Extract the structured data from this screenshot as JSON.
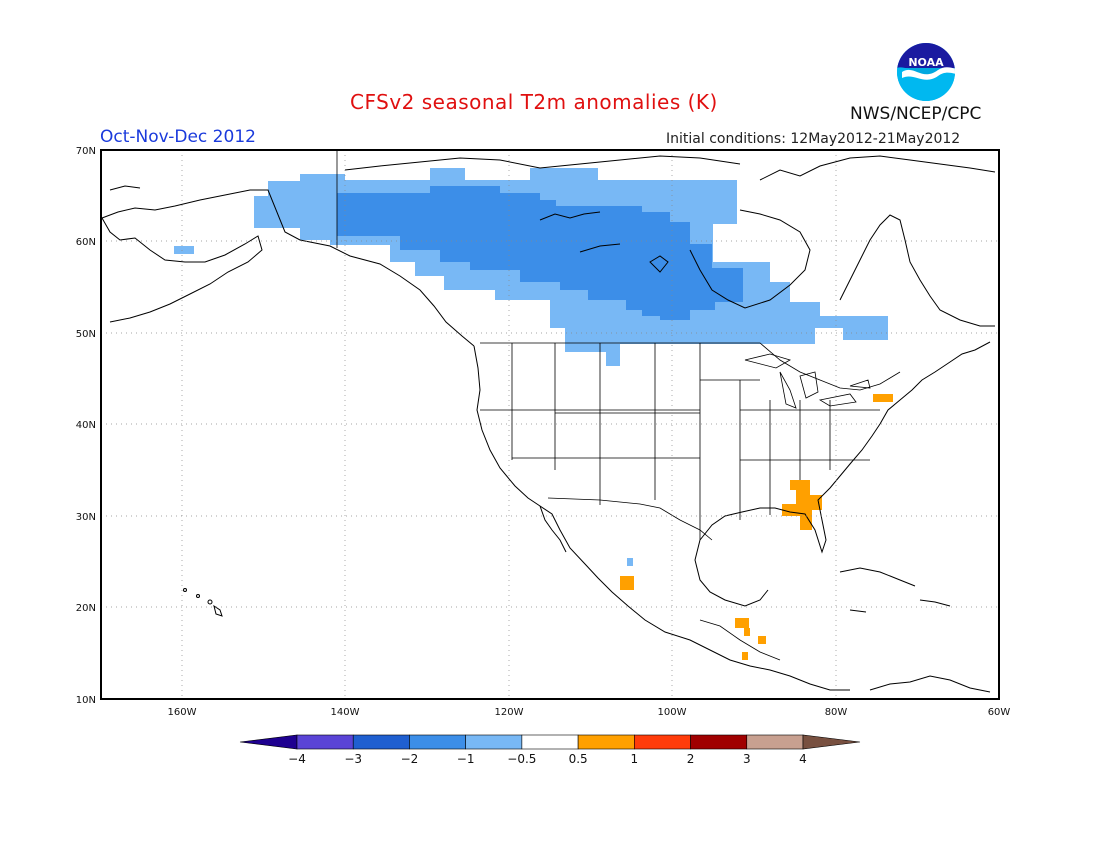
{
  "title": "CFSv2 seasonal T2m anomalies (K)",
  "period": "Oct-Nov-Dec 2012",
  "initial_conditions": "Initial conditions: 12May2012-21May2012",
  "agency": "NWS/NCEP/CPC",
  "logo_text": "NOAA",
  "map": {
    "lat_ticks": [
      {
        "value": 70,
        "label": "70N"
      },
      {
        "value": 60,
        "label": "60N"
      },
      {
        "value": 50,
        "label": "50N"
      },
      {
        "value": 40,
        "label": "40N"
      },
      {
        "value": 30,
        "label": "30N"
      },
      {
        "value": 20,
        "label": "20N"
      },
      {
        "value": 10,
        "label": "10N"
      }
    ],
    "lon_ticks": [
      {
        "value": -160,
        "label": "160W"
      },
      {
        "value": -140,
        "label": "140W"
      },
      {
        "value": -120,
        "label": "120W"
      },
      {
        "value": -100,
        "label": "100W"
      },
      {
        "value": -80,
        "label": "80W"
      },
      {
        "value": -60,
        "label": "60W"
      }
    ],
    "extent": {
      "lon": [
        -170,
        -60
      ],
      "lat": [
        10,
        70
      ]
    },
    "grid": "dotted"
  },
  "colorbar": {
    "labels": [
      "−4",
      "−3",
      "−2",
      "−1",
      "−0.5",
      "0.5",
      "1",
      "2",
      "3",
      "4"
    ],
    "colors": [
      "#1e0090",
      "#5a44d6",
      "#1f5fd0",
      "#3c8ee8",
      "#78b8f5",
      "#ffffff",
      "#ffa000",
      "#ff3c0a",
      "#a00000",
      "#c8a090",
      "#785040"
    ]
  },
  "anomaly_regions": [
    {
      "name": "northern-canada",
      "level": "-1 to -0.5 K",
      "color": "#78b8f5"
    },
    {
      "name": "central-canada",
      "level": "-2 to -1 K",
      "color": "#3c8ee8"
    },
    {
      "name": "southeast-us",
      "level": "0.5 to 1 K",
      "color": "#ffa000"
    },
    {
      "name": "northeast-us",
      "level": "0.5 to 1 K",
      "color": "#ffa000"
    },
    {
      "name": "west-mexico",
      "level": "0.5 to 1 K",
      "color": "#ffa000"
    },
    {
      "name": "central-america",
      "level": "0.5 to 1 K",
      "color": "#ffa000"
    }
  ]
}
